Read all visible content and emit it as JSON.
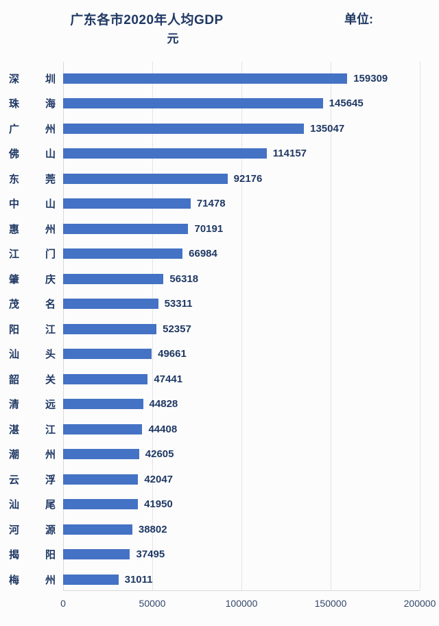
{
  "header": {
    "title": "广东各市2020年人均GDP",
    "unit_label": "单位:",
    "unit_value": "元"
  },
  "chart_data": {
    "type": "bar",
    "orientation": "horizontal",
    "title": "广东各市2020年人均GDP 单位: 元",
    "categories": [
      "深圳",
      "珠海",
      "广州",
      "佛山",
      "东莞",
      "中山",
      "惠州",
      "江门",
      "肇庆",
      "茂名",
      "阳江",
      "汕头",
      "韶关",
      "清远",
      "湛江",
      "潮州",
      "云浮",
      "汕尾",
      "河源",
      "揭阳",
      "梅州"
    ],
    "values": [
      159309,
      145645,
      135047,
      114157,
      92176,
      71478,
      70191,
      66984,
      56318,
      53311,
      52357,
      49661,
      47441,
      44828,
      44408,
      42605,
      42047,
      41950,
      38802,
      37495,
      31011
    ],
    "xlim": [
      0,
      200000
    ],
    "x_ticks": [
      0,
      50000,
      100000,
      150000,
      200000
    ],
    "x_tick_labels": [
      "0",
      "50000",
      "100000",
      "150000",
      "200000"
    ],
    "bar_color": "#4472c4",
    "text_color": "#1f3864",
    "grid": true,
    "legend": "none"
  }
}
